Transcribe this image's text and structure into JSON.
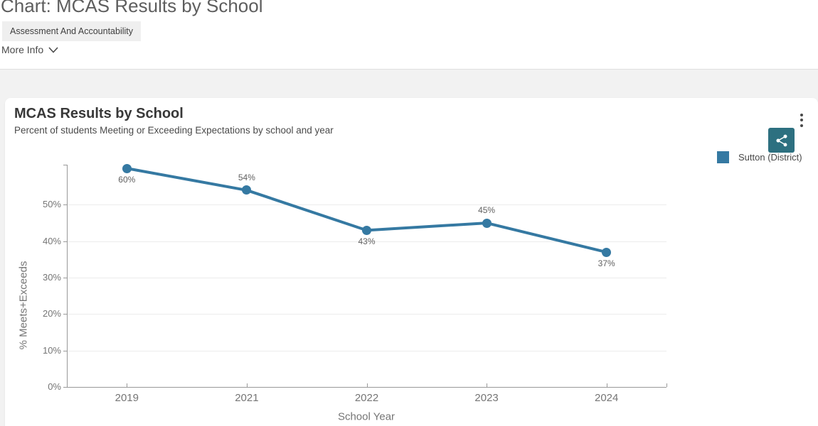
{
  "page": {
    "title": "Chart: MCAS Results by School",
    "badge": "Assessment And Accountability",
    "more_info": "More Info"
  },
  "card": {
    "title": "MCAS Results by School",
    "subtitle": "Percent of students Meeting or Exceeding Expectations by school and year"
  },
  "icons": {
    "share": "share-icon",
    "menu": "kebab-menu-icon",
    "more_info_chevron": "chevron-down-icon"
  },
  "colors": {
    "series_line": "#3579a2",
    "share_button": "#2d7080",
    "grid_line": "#ececec",
    "axis_line": "#999999",
    "tick_label": "#757575",
    "data_label": "#616161",
    "badge_bg": "#efefef",
    "band_bg": "#f2f2f2"
  },
  "chart_data": {
    "type": "line",
    "title": "MCAS Results by School",
    "subtitle": "Percent of students Meeting or Exceeding Expectations by school and year",
    "xlabel": "School Year",
    "ylabel": "% Meets+Exceeds",
    "categories": [
      "2019",
      "2021",
      "2022",
      "2023",
      "2024"
    ],
    "series": [
      {
        "name": "Sutton (District)",
        "color": "#3579a2",
        "values": [
          60,
          54,
          43,
          45,
          37
        ]
      }
    ],
    "data_labels": [
      "60%",
      "54%",
      "43%",
      "45%",
      "37%"
    ],
    "label_positions": [
      "below",
      "above",
      "below",
      "above",
      "below"
    ],
    "y_ticks": [
      0,
      10,
      20,
      30,
      40,
      50
    ],
    "y_tick_suffix": "%",
    "ylim": [
      0,
      61
    ],
    "grid": true,
    "legend_position": "top-right"
  }
}
